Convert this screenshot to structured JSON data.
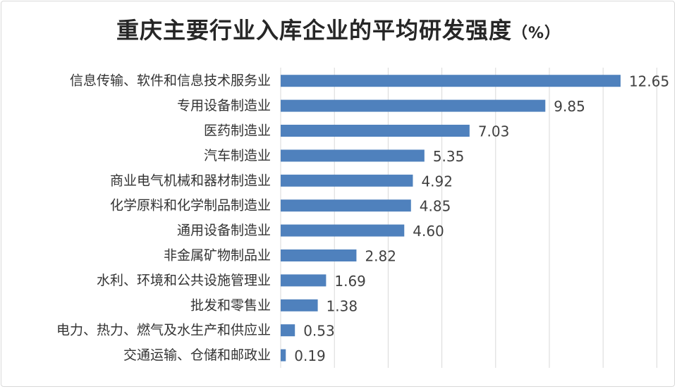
{
  "chart_data": {
    "type": "bar",
    "orientation": "horizontal",
    "title": "重庆主要行业入库企业的平均研发强度",
    "title_unit": "（%）",
    "xlim": [
      0,
      14
    ],
    "grid": true,
    "bar_color": "#4f81bd",
    "categories": [
      "信息传输、软件和信息技术服务业",
      "专用设备制造业",
      "医药制造业",
      "汽车制造业",
      "商业电气机械和器材制造业",
      "化学原料和化学制品制造业",
      "通用设备制造业",
      "非金属矿物制品业",
      "水利、环境和公共设施管理业",
      "批发和零售业",
      "电力、热力、燃气及水生产和供应业",
      "交通运输、仓储和邮政业"
    ],
    "values": [
      12.65,
      9.85,
      7.03,
      5.35,
      4.92,
      4.85,
      4.6,
      2.82,
      1.69,
      1.38,
      0.53,
      0.19
    ],
    "value_labels": [
      "12.65",
      "9.85",
      "7.03",
      "5.35",
      "4.92",
      "4.85",
      "4.60",
      "2.82",
      "1.69",
      "1.38",
      "0.53",
      "0.19"
    ]
  }
}
